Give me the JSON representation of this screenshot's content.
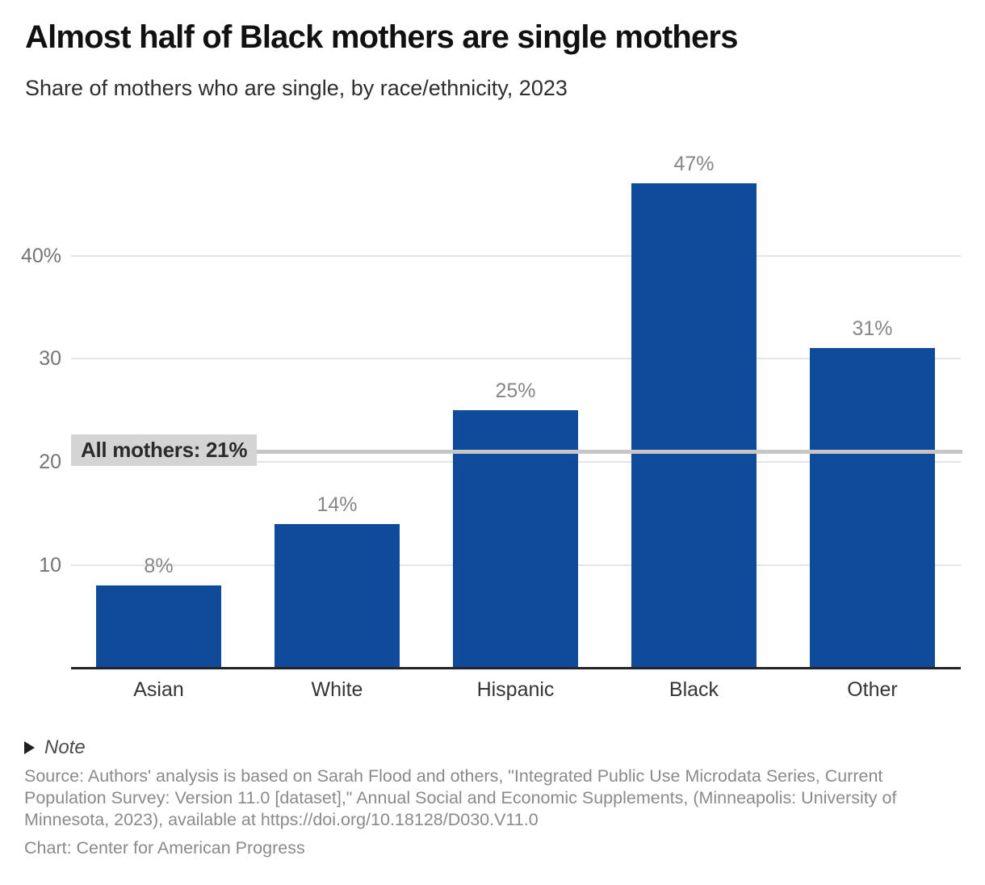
{
  "header": {
    "title": "Almost half of Black mothers are single mothers",
    "subtitle": "Share of mothers who are single, by race/ethnicity, 2023"
  },
  "chart_data": {
    "type": "bar",
    "title": "Almost half of Black mothers are single mothers",
    "subtitle": "Share of mothers who are single, by race/ethnicity, 2023",
    "categories": [
      "Asian",
      "White",
      "Hispanic",
      "Black",
      "Other"
    ],
    "values": [
      8,
      14,
      25,
      47,
      31
    ],
    "value_labels": [
      "8%",
      "14%",
      "25%",
      "47%",
      "31%"
    ],
    "unit": "%",
    "xlabel": "",
    "ylabel": "",
    "ylim": [
      0,
      52
    ],
    "grid": true,
    "legend": false,
    "y_ticks": [
      {
        "value": 10,
        "label": "10"
      },
      {
        "value": 20,
        "label": "20"
      },
      {
        "value": 30,
        "label": "30"
      },
      {
        "value": 40,
        "label": "40%"
      }
    ],
    "reference_line": {
      "value": 21,
      "label": "All mothers: 21%"
    },
    "colors": {
      "bar": "#104a9b",
      "gridline": "#e5e5e5",
      "axis": "#242424",
      "reference_line": "#c6c6c6",
      "reference_label_bg": "#d4d4d4",
      "reference_label_text": "#2b2b2b",
      "value_label": "#868686",
      "tick_label": "#757575",
      "category_label": "#353535"
    }
  },
  "footer": {
    "note_label": "Note",
    "source": "Source: Authors' analysis is based on Sarah Flood and others, \"Integrated Public Use Microdata Series, Current Population Survey: Version 11.0 [dataset],\" Annual Social and Economic Supplements, (Minneapolis: University of Minnesota, 2023), available at https://doi.org/10.18128/D030.V11.0",
    "credit": "Chart: Center for American Progress"
  }
}
